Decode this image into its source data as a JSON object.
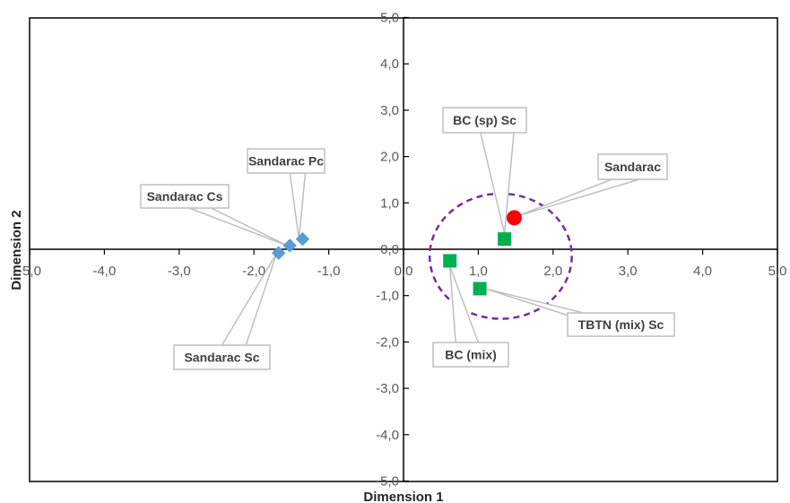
{
  "chart_data": {
    "type": "scatter",
    "title": "",
    "xlabel": "Dimension 1",
    "ylabel": "Dimension 2",
    "xlim": [
      -5,
      5
    ],
    "ylim": [
      -5,
      5
    ],
    "x_ticks": [
      "-5,0",
      "-4,0",
      "-3,0",
      "-2,0",
      "-1,0",
      "0,0",
      "1,0",
      "2,0",
      "3,0",
      "4,0",
      "5,0"
    ],
    "y_ticks": [
      "-5,0",
      "-4,0",
      "-3,0",
      "-2,0",
      "-1,0",
      "0,0",
      "1,0",
      "2,0",
      "3,0",
      "4,0",
      "5,0"
    ],
    "tick_values": [
      -5,
      -4,
      -3,
      -2,
      -1,
      0,
      1,
      2,
      3,
      4,
      5
    ],
    "grid": false,
    "colors": {
      "blue": "#5b9bd5",
      "green": "#00b050",
      "red": "#ff0000",
      "ellipse": "#7030a0"
    },
    "points": [
      {
        "label": "Sandarac Pc",
        "x": -1.35,
        "y": 0.22,
        "marker": "diamond",
        "color": "#5b9bd5"
      },
      {
        "label": "Sandarac Cs",
        "x": -1.52,
        "y": 0.08,
        "marker": "diamond",
        "color": "#5b9bd5"
      },
      {
        "label": "Sandarac Sc",
        "x": -1.67,
        "y": -0.08,
        "marker": "diamond",
        "color": "#5b9bd5"
      },
      {
        "label": "BC (sp) Sc",
        "x": 1.35,
        "y": 0.22,
        "marker": "square",
        "color": "#00b050"
      },
      {
        "label": "BC (mix)",
        "x": 0.62,
        "y": -0.25,
        "marker": "square",
        "color": "#00b050"
      },
      {
        "label": "TBTN (mix) Sc",
        "x": 1.02,
        "y": -0.85,
        "marker": "square",
        "color": "#00b050"
      },
      {
        "label": "Sandarac",
        "x": 1.48,
        "y": 0.68,
        "marker": "circle",
        "color": "#ff0000"
      }
    ],
    "annotations": [
      {
        "shape": "dashed-ellipse",
        "cx": 1.3,
        "cy": -0.15,
        "rx": 0.95,
        "ry": 1.35,
        "color": "#7030a0"
      }
    ]
  }
}
